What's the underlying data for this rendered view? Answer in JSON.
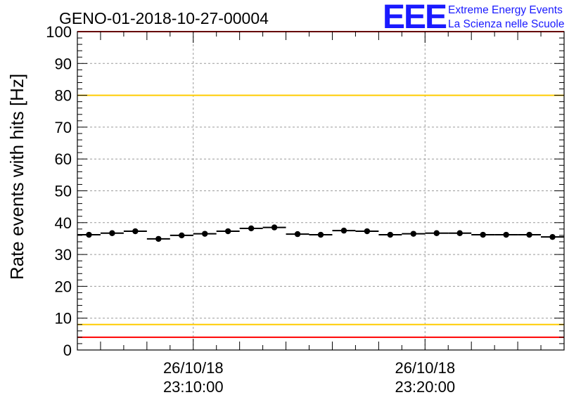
{
  "title": "GENO-01-2018-10-27-00004",
  "logo": {
    "mark": "EEE",
    "line1": "Extreme Energy Events",
    "line2": "La Scienza nelle Scuole",
    "color": "#1a1aff"
  },
  "chart_data": {
    "type": "scatter",
    "title": "GENO-01-2018-10-27-00004",
    "ylabel": "Rate events with hits [Hz]",
    "ylim": [
      0,
      100
    ],
    "y_ticks": [
      0,
      10,
      20,
      30,
      40,
      50,
      60,
      70,
      80,
      90,
      100
    ],
    "xlim_minutes": [
      0,
      21
    ],
    "x_tick_labels": [
      {
        "at_minute": 5,
        "line1": "26/10/18",
        "line2": "23:10:00"
      },
      {
        "at_minute": 15,
        "line1": "26/10/18",
        "line2": "23:20:00"
      }
    ],
    "grid": true,
    "reference_lines": [
      {
        "y": 100,
        "color": "#ff0000"
      },
      {
        "y": 80,
        "color": "#ffcc00"
      },
      {
        "y": 8,
        "color": "#ffcc00"
      },
      {
        "y": 4,
        "color": "#ff0000"
      }
    ],
    "bin_width_minutes": 1,
    "x": [
      0.5,
      1.5,
      2.5,
      3.5,
      4.5,
      5.5,
      6.5,
      7.5,
      8.5,
      9.5,
      10.5,
      11.5,
      12.5,
      13.5,
      14.5,
      15.5,
      16.5,
      17.5,
      18.5,
      19.5,
      20.5
    ],
    "values": [
      36.2,
      36.7,
      37.3,
      34.9,
      36.0,
      36.5,
      37.3,
      38.2,
      38.5,
      36.4,
      36.2,
      37.5,
      37.3,
      36.2,
      36.5,
      36.7,
      36.7,
      36.2,
      36.2,
      36.2,
      35.5
    ]
  }
}
